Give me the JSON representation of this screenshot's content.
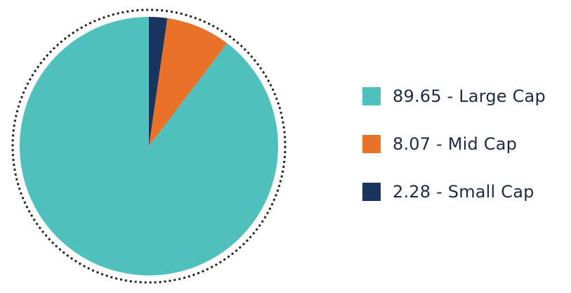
{
  "chart_data": {
    "type": "pie",
    "slices": [
      {
        "label": "89.65 - Large Cap",
        "value": 89.65,
        "color": "#4fc0bb"
      },
      {
        "label": "8.07 - Mid Cap",
        "value": 8.07,
        "color": "#ea7228"
      },
      {
        "label": "2.28 - Small Cap",
        "value": 2.28,
        "color": "#17355f"
      }
    ],
    "start_angle": "12 o'clock",
    "direction": "counterclockwise",
    "outer_ring": "dotted",
    "legend_position": "right"
  }
}
